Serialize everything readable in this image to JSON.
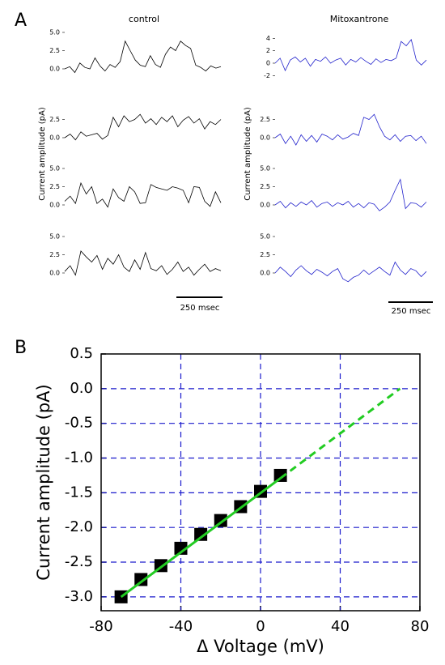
{
  "panels": {
    "a": "A",
    "b": "B"
  },
  "column_titles": [
    "control",
    "Mitoxantrone"
  ],
  "trace_ylabel": "Current amplitude (pA)",
  "scale_bar": "250 msec",
  "chart_data": [
    {
      "type": "line",
      "color": "#000000",
      "ylim": [
        -1.5,
        5.5
      ],
      "yticks": [
        {
          "value": 0,
          "label": "0.0"
        },
        2.5,
        {
          "value": 5,
          "label": "5.0"
        }
      ],
      "values": [
        0,
        0.3,
        -0.5,
        0.8,
        0.2,
        0,
        1.5,
        0.4,
        -0.3,
        0.6,
        0.2,
        1.0,
        3.8,
        2.5,
        1.2,
        0.5,
        0.3,
        1.8,
        0.6,
        0.2,
        2.0,
        3.0,
        2.5,
        3.8,
        3.2,
        2.8,
        0.5,
        0.2,
        -0.3,
        0.4,
        0.1,
        0.3
      ]
    },
    {
      "type": "line",
      "color": "#000000",
      "ylim": [
        -1.5,
        5.5
      ],
      "yticks": [
        {
          "value": 0,
          "label": "0.0"
        },
        2.5
      ],
      "values": [
        0,
        0.5,
        -0.3,
        0.8,
        0.2,
        0.4,
        0.6,
        -0.2,
        0.3,
        2.8,
        1.5,
        3.0,
        2.2,
        2.5,
        3.2,
        2.0,
        2.6,
        1.8,
        2.8,
        2.2,
        3.0,
        1.5,
        2.4,
        2.9,
        2.0,
        2.6,
        1.2,
        2.2,
        1.8,
        2.5
      ]
    },
    {
      "type": "line",
      "color": "#000000",
      "ylim": [
        -1.5,
        5.5
      ],
      "yticks": [
        {
          "value": 0,
          "label": "0.0"
        },
        2.5,
        {
          "value": 5,
          "label": "5.0"
        }
      ],
      "values": [
        0.5,
        1.2,
        0.2,
        3.0,
        1.5,
        2.5,
        0.2,
        0.8,
        -0.3,
        2.2,
        1.0,
        0.5,
        2.5,
        1.8,
        0.2,
        0.3,
        2.8,
        2.4,
        2.2,
        2.0,
        2.5,
        2.3,
        2.0,
        0.3,
        2.5,
        2.4,
        0.5,
        -0.2,
        1.8,
        0.3
      ]
    },
    {
      "type": "line",
      "color": "#000000",
      "ylim": [
        -1.5,
        5.5
      ],
      "yticks": [
        {
          "value": 0,
          "label": "0.0"
        },
        2.5,
        {
          "value": 5,
          "label": "5.0"
        }
      ],
      "values": [
        0.2,
        1.0,
        -0.3,
        3.0,
        2.2,
        1.5,
        2.4,
        0.5,
        2.0,
        1.2,
        2.5,
        0.8,
        0.2,
        1.8,
        0.5,
        2.8,
        0.6,
        0.3,
        1.0,
        -0.2,
        0.5,
        1.5,
        0.2,
        0.8,
        -0.3,
        0.5,
        1.2,
        0.2,
        0.6,
        0.3
      ]
    },
    {
      "type": "line",
      "color": "#2222cc",
      "ylim": [
        -2.5,
        4.5
      ],
      "yticks": [
        -2,
        0,
        2,
        4
      ],
      "values": [
        0,
        0.8,
        -1.2,
        0.5,
        1.0,
        0.2,
        0.8,
        -0.5,
        0.6,
        0.3,
        1.0,
        0,
        0.5,
        0.8,
        -0.3,
        0.6,
        0.2,
        0.9,
        0.3,
        -0.2,
        0.7,
        0.1,
        0.6,
        0.4,
        0.8,
        3.5,
        2.8,
        3.8,
        0.5,
        -0.3,
        0.5
      ]
    },
    {
      "type": "line",
      "color": "#2222cc",
      "ylim": [
        -1.5,
        5.5
      ],
      "yticks": [
        {
          "value": 0,
          "label": "0.0"
        },
        2.5
      ],
      "values": [
        0,
        0.5,
        -0.8,
        0.2,
        -1.0,
        0.4,
        -0.5,
        0.3,
        -0.6,
        0.5,
        0.2,
        -0.3,
        0.4,
        -0.2,
        0.1,
        0.6,
        0.3,
        2.8,
        2.5,
        3.2,
        1.5,
        0.2,
        -0.3,
        0.4,
        -0.5,
        0.2,
        0.3,
        -0.4,
        0.2,
        -0.8
      ]
    },
    {
      "type": "line",
      "color": "#2222cc",
      "ylim": [
        -1.5,
        5.5
      ],
      "yticks": [
        {
          "value": 0,
          "label": "0.0"
        },
        2.5,
        {
          "value": 5,
          "label": "5.0"
        }
      ],
      "values": [
        0,
        0.5,
        -0.4,
        0.3,
        -0.2,
        0.4,
        0,
        0.6,
        -0.3,
        0.2,
        0.4,
        -0.2,
        0.3,
        0,
        0.5,
        -0.3,
        0.2,
        -0.4,
        0.3,
        0.1,
        -0.8,
        -0.3,
        0.4,
        2.0,
        3.5,
        -0.5,
        0.3,
        0.2,
        -0.3,
        0.4
      ]
    },
    {
      "type": "line",
      "color": "#2222cc",
      "ylim": [
        -1.5,
        5.5
      ],
      "yticks": [
        {
          "value": 0,
          "label": "0.0"
        },
        2.5,
        {
          "value": 5,
          "label": "5.0"
        }
      ],
      "values": [
        0,
        0.8,
        0.2,
        -0.5,
        0.4,
        1.0,
        0.3,
        -0.2,
        0.5,
        0.1,
        -0.4,
        0.2,
        0.6,
        -0.8,
        -1.2,
        -0.6,
        -0.3,
        0.4,
        -0.2,
        0.3,
        0.8,
        0.2,
        -0.3,
        1.5,
        0.4,
        -0.2,
        0.6,
        0.3,
        -0.5,
        0.2
      ]
    },
    {
      "type": "scatter",
      "xlabel": "Δ Voltage (mV)",
      "ylabel": "Current amplitude (pA)",
      "xlim": [
        -80,
        80
      ],
      "xticks": [
        -80,
        -40,
        0,
        40,
        80
      ],
      "ylim": [
        -3.2,
        0.5
      ],
      "yticks": [
        {
          "value": -3,
          "label": "-3.0"
        },
        -2.5,
        {
          "value": -2,
          "label": "-2.0"
        },
        -1.5,
        {
          "value": -1,
          "label": "-1.0"
        },
        -0.5,
        {
          "value": 0,
          "label": "0.0"
        },
        0.5
      ],
      "grid": true,
      "grid_color": "#1a1acc",
      "color": "#000000",
      "x": [
        -70,
        -60,
        -50,
        -40,
        -30,
        -20,
        -10,
        0,
        10
      ],
      "values": [
        -3.0,
        -2.75,
        -2.55,
        -2.3,
        -2.1,
        -1.9,
        -1.7,
        -1.48,
        -1.25
      ],
      "errors": [
        0.08,
        0.08,
        0.06,
        0.05,
        0.07,
        0.05,
        0.05,
        0.07,
        0.08
      ],
      "fit": {
        "color": "#22cc22",
        "x": [
          -70,
          10
        ],
        "values": [
          -3.0,
          -1.29
        ]
      },
      "extrapolation": {
        "color": "#22cc22",
        "x": [
          10,
          70
        ],
        "values": [
          -1.29,
          0.0
        ]
      }
    }
  ]
}
